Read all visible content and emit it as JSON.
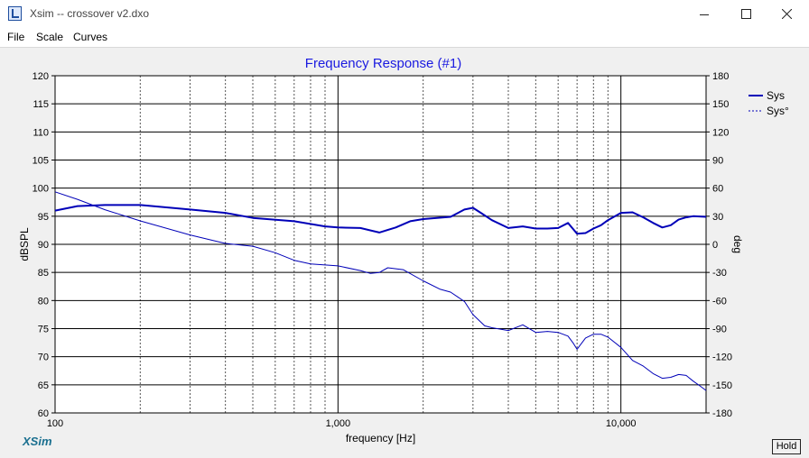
{
  "window": {
    "title": "Xsim -- crossover v2.dxo",
    "menu": [
      "File",
      "Scale",
      "Curves"
    ]
  },
  "hold_label": "Hold",
  "logo_text": "XSim",
  "colors": {
    "line": "#0000b8",
    "title": "#1a1ae0",
    "grid": "#000000",
    "logo": "#1a6f8f"
  },
  "chart_data": {
    "type": "line",
    "title": "Frequency Response (#1)",
    "xlabel": "frequency [Hz]",
    "ylabel_left": "dBSPL",
    "ylabel_right": "deg",
    "x_scale": "log",
    "xlim": [
      100,
      20000
    ],
    "ylim_left": [
      60,
      120
    ],
    "ylim_right": [
      -180,
      180
    ],
    "x_tick_labels": [
      "100",
      "1,000",
      "10,000"
    ],
    "y_left_ticks": [
      "120",
      "115",
      "110",
      "105",
      "100",
      "95",
      "90",
      "85",
      "80",
      "75",
      "70",
      "65",
      "60"
    ],
    "y_right_ticks": [
      "180",
      "150",
      "120",
      "90",
      "60",
      "30",
      "0",
      "-30",
      "-60",
      "-90",
      "-120",
      "-150",
      "-180"
    ],
    "grid": true,
    "legend_position": "top-right",
    "series": [
      {
        "name": "Sys",
        "axis": "left",
        "style": "solid",
        "x": [
          100,
          120,
          150,
          200,
          300,
          400,
          500,
          700,
          900,
          1000,
          1200,
          1400,
          1600,
          1800,
          2000,
          2500,
          2800,
          3000,
          3200,
          3500,
          4000,
          4500,
          5000,
          5500,
          6000,
          6500,
          7000,
          7500,
          8000,
          8500,
          9000,
          10000,
          11000,
          12000,
          13000,
          14000,
          15000,
          16000,
          17000,
          18000,
          20000
        ],
        "y": [
          96.0,
          96.8,
          97.0,
          97.0,
          96.2,
          95.6,
          94.7,
          94.1,
          93.2,
          93.0,
          92.9,
          92.1,
          93.0,
          94.1,
          94.5,
          94.9,
          96.2,
          96.5,
          95.6,
          94.3,
          92.9,
          93.2,
          92.8,
          92.8,
          92.9,
          93.8,
          91.9,
          92.0,
          92.8,
          93.4,
          94.3,
          95.6,
          95.7,
          94.8,
          93.8,
          93.0,
          93.4,
          94.4,
          94.8,
          95.0,
          94.9
        ]
      },
      {
        "name": "Sys°",
        "axis": "right",
        "style": "dashed",
        "x": [
          100,
          120,
          150,
          200,
          300,
          400,
          500,
          600,
          700,
          800,
          1000,
          1200,
          1300,
          1400,
          1500,
          1700,
          2000,
          2300,
          2500,
          2800,
          3000,
          3300,
          3500,
          4000,
          4500,
          5000,
          5500,
          6000,
          6500,
          6800,
          7000,
          7500,
          8000,
          8500,
          9000,
          10000,
          11000,
          12000,
          13000,
          14000,
          15000,
          16000,
          17000,
          18000,
          19000,
          20000
        ],
        "y": [
          56,
          48,
          37,
          25,
          10,
          1,
          -2,
          -9,
          -17,
          -21,
          -23,
          -28,
          -31,
          -30,
          -25,
          -27,
          -39,
          -48,
          -51,
          -61,
          -75,
          -87,
          -89,
          -92,
          -86,
          -94,
          -93,
          -94,
          -98,
          -106,
          -112,
          -100,
          -96,
          -96,
          -99,
          -110,
          -124,
          -130,
          -138,
          -143,
          -142,
          -139,
          -140,
          -146,
          -151,
          -156
        ]
      }
    ]
  }
}
